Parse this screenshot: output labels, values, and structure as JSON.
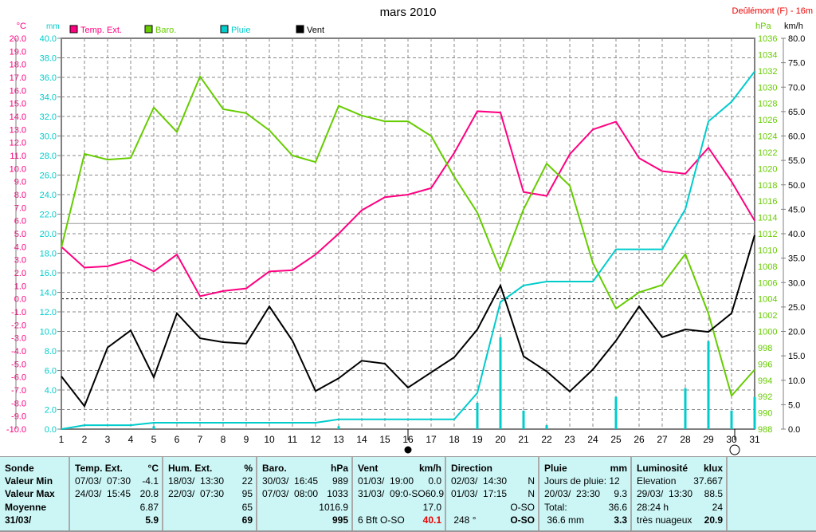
{
  "chart_data": {
    "type": "line",
    "title": "mars 2010",
    "station": "Deûlémont (F) - 16m",
    "axes": {
      "temp": {
        "unit": "°C",
        "range": [
          -10,
          20
        ],
        "color": "#ff0080"
      },
      "rain": {
        "unit": "mm",
        "range": [
          0,
          40
        ],
        "color": "#00cccc"
      },
      "baro": {
        "unit": "hPa",
        "range": [
          988,
          1036
        ],
        "color": "#66cc00"
      },
      "wind": {
        "unit": "km/h",
        "range": [
          0,
          80
        ],
        "color": "#000000"
      }
    },
    "x": [
      1,
      2,
      3,
      4,
      5,
      6,
      7,
      8,
      9,
      10,
      11,
      12,
      13,
      14,
      15,
      16,
      17,
      18,
      19,
      20,
      21,
      22,
      23,
      24,
      25,
      26,
      27,
      28,
      29,
      30,
      31
    ],
    "legend": [
      "Temp. Ext.",
      "Baro.",
      "Pluie",
      "Vent"
    ],
    "series": [
      {
        "name": "Temp. Ext.",
        "axis": "temp",
        "color": "#ff0080",
        "values": [
          4.0,
          2.4,
          2.5,
          3.0,
          2.1,
          3.4,
          0.2,
          0.6,
          0.8,
          2.1,
          2.2,
          3.4,
          5.0,
          6.8,
          7.8,
          8.0,
          8.5,
          11.2,
          14.4,
          14.3,
          8.2,
          7.9,
          11.1,
          13.0,
          13.6,
          10.8,
          9.8,
          9.6,
          11.6,
          9.0,
          6.0
        ]
      },
      {
        "name": "Baro.",
        "axis": "baro",
        "color": "#66cc00",
        "values": [
          1010.3,
          1021.8,
          1021.1,
          1021.3,
          1027.5,
          1024.5,
          1031.3,
          1027.3,
          1026.8,
          1024.7,
          1021.6,
          1020.8,
          1027.7,
          1026.5,
          1025.8,
          1025.8,
          1024.0,
          1019.0,
          1014.6,
          1007.5,
          1015.0,
          1020.6,
          1017.9,
          1008.4,
          1002.8,
          1004.8,
          1005.7,
          1009.5,
          1002.2,
          992.1,
          995.3
        ]
      },
      {
        "name": "Pluie",
        "axis": "rain",
        "color": "#00cccc",
        "values": [
          0,
          0.4,
          0.4,
          0.4,
          0.65,
          0.65,
          0.65,
          0.65,
          0.65,
          0.65,
          0.65,
          0.65,
          1.0,
          1.0,
          1.0,
          1.0,
          1.0,
          1.0,
          3.7,
          13.0,
          14.7,
          15.1,
          15.1,
          15.1,
          18.4,
          18.4,
          18.4,
          22.5,
          31.5,
          33.5,
          36.6
        ]
      },
      {
        "name": "Vent",
        "axis": "wind",
        "color": "#000000",
        "values": [
          10.8,
          4.7,
          16.7,
          20.2,
          10.6,
          23.7,
          18.6,
          17.8,
          17.5,
          25.1,
          18.1,
          7.8,
          10.4,
          14.0,
          13.4,
          8.5,
          11.6,
          14.7,
          20.4,
          29.4,
          14.9,
          11.8,
          7.7,
          12.2,
          18.1,
          25.1,
          18.8,
          20.4,
          19.9,
          23.7,
          39.7
        ]
      }
    ],
    "daily_rain": {
      "name": "Pluie journalière",
      "axis": "rain",
      "days": [
        5,
        13,
        19,
        20,
        21,
        22,
        25,
        28,
        29,
        30,
        31
      ],
      "values": [
        0.3,
        0.3,
        2.7,
        9.4,
        1.9,
        0.4,
        3.3,
        4.2,
        9.0,
        1.9,
        3.3
      ]
    },
    "moon": [
      {
        "day": 16,
        "phase": "new"
      },
      {
        "day": 30,
        "phase": "full"
      }
    ]
  },
  "table": {
    "col0": [
      "Sonde",
      "Valeur Min",
      "Valeur Max",
      "Moyenne",
      "31/03/"
    ],
    "temp": {
      "h": [
        "Temp. Ext.",
        "°C"
      ],
      "r": [
        [
          "07/03/  07:30",
          "-4.1"
        ],
        [
          "24/03/  15:45",
          "20.8"
        ],
        [
          "",
          "6.87"
        ],
        [
          "",
          "5.9"
        ]
      ]
    },
    "hum": {
      "h": [
        "Hum. Ext.",
        "%"
      ],
      "r": [
        [
          "18/03/  13:30",
          "22"
        ],
        [
          "22/03/  07:30",
          "95"
        ],
        [
          "",
          "65"
        ],
        [
          "",
          "69"
        ]
      ]
    },
    "baro": {
      "h": [
        "Baro.",
        "hPa"
      ],
      "r": [
        [
          "30/03/  16:45",
          "989"
        ],
        [
          "07/03/  08:00",
          "1033"
        ],
        [
          "",
          "1016.9"
        ],
        [
          "",
          "995"
        ]
      ]
    },
    "vent": {
      "h": [
        "Vent",
        "km/h"
      ],
      "r": [
        [
          "01/03/  19:00",
          "0.0"
        ],
        [
          "31/03/  09:0-SO",
          "60.9"
        ],
        [
          "",
          "17.0"
        ],
        [
          "6 Bft O-SO",
          "40.1"
        ]
      ]
    },
    "dir": {
      "h": [
        "Direction",
        ""
      ],
      "r": [
        [
          "02/03/  14:30",
          "N"
        ],
        [
          "01/03/  17:15",
          "N"
        ],
        [
          "",
          "O-SO"
        ],
        [
          " 248 °",
          "O-SO"
        ]
      ]
    },
    "pluie": {
      "h": [
        "Pluie",
        "mm"
      ],
      "r": [
        [
          "Jours de pluie: 12",
          ""
        ],
        [
          "20/03/  23:30",
          "9.3"
        ],
        [
          "Total:",
          "36.6"
        ],
        [
          " 36.6 mm",
          "3.3"
        ]
      ]
    },
    "lum": {
      "h": [
        "Luminosité",
        "klux"
      ],
      "r": [
        [
          "Elevation",
          "37.667"
        ],
        [
          "29/03/  13:30",
          "88.5"
        ],
        [
          "28:24 h",
          "24"
        ],
        [
          "très nuageux",
          "20.9"
        ]
      ]
    }
  }
}
